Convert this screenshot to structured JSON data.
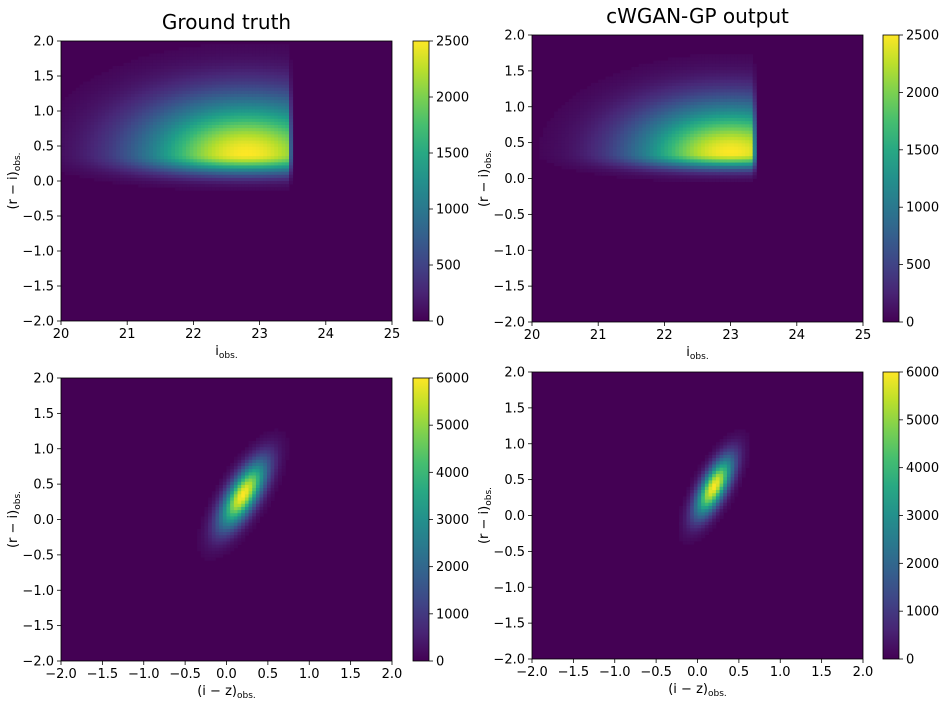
{
  "chart_data": [
    {
      "type": "heatmap",
      "title": "Ground truth",
      "xlabel": "i",
      "xlabel_sub": "obs.",
      "ylabel": "(r − i)",
      "ylabel_sub": "obs.",
      "xlim": [
        20,
        25
      ],
      "ylim": [
        -2.0,
        2.0
      ],
      "x_ticks": [
        "20",
        "21",
        "22",
        "23",
        "24",
        "25"
      ],
      "y_ticks": [
        "−2.0",
        "−1.5",
        "−1.0",
        "−0.5",
        "0.0",
        "0.5",
        "1.0",
        "1.5",
        "2.0"
      ],
      "colormap": "viridis",
      "colorbar_range": [
        0,
        2500
      ],
      "colorbar_ticks": [
        "0",
        "500",
        "1000",
        "1500",
        "2000",
        "2500"
      ],
      "grid": false,
      "density": {
        "kind": "imag",
        "x_cut": 23.5,
        "peak_x": 22.8,
        "peak_y": 0.38,
        "peak_value": 2500,
        "upper_spread": 0.55,
        "lower_spread": 0.18,
        "x_spread": 1.1
      }
    },
    {
      "type": "heatmap",
      "title": "cWGAN-GP output",
      "xlabel": "i",
      "xlabel_sub": "obs.",
      "ylabel": "(r − i)",
      "ylabel_sub": "obs.",
      "xlim": [
        20,
        25
      ],
      "ylim": [
        -2.0,
        2.0
      ],
      "x_ticks": [
        "20",
        "21",
        "22",
        "23",
        "24",
        "25"
      ],
      "y_ticks": [
        "−2.0",
        "−1.5",
        "−1.0",
        "−0.5",
        "0.0",
        "0.5",
        "1.0",
        "1.5",
        "2.0"
      ],
      "colormap": "viridis",
      "colorbar_range": [
        0,
        2500
      ],
      "colorbar_ticks": [
        "0",
        "500",
        "1000",
        "1500",
        "2000",
        "2500"
      ],
      "grid": false,
      "density": {
        "kind": "imag",
        "x_cut": 23.4,
        "peak_x": 23.0,
        "peak_y": 0.35,
        "peak_value": 2500,
        "upper_spread": 0.48,
        "lower_spread": 0.14,
        "x_spread": 1.0
      }
    },
    {
      "type": "heatmap",
      "title": "",
      "xlabel": "(i − z)",
      "xlabel_sub": "obs.",
      "ylabel": "(r − i)",
      "ylabel_sub": "obs.",
      "xlim": [
        -2.0,
        2.0
      ],
      "ylim": [
        -2.0,
        2.0
      ],
      "x_ticks": [
        "−2.0",
        "−1.5",
        "−1.0",
        "−0.5",
        "0.0",
        "0.5",
        "1.0",
        "1.5",
        "2.0"
      ],
      "y_ticks": [
        "−2.0",
        "−1.5",
        "−1.0",
        "−0.5",
        "0.0",
        "0.5",
        "1.0",
        "1.5",
        "2.0"
      ],
      "colormap": "viridis",
      "colorbar_range": [
        0,
        6000
      ],
      "colorbar_ticks": [
        "0",
        "1000",
        "2000",
        "3000",
        "4000",
        "5000",
        "6000"
      ],
      "grid": false,
      "density": {
        "kind": "color",
        "peak_x": 0.2,
        "peak_y": 0.35,
        "peak_value": 6000,
        "slope": 0.5,
        "along_spread": 0.35,
        "across_spread": 0.12
      }
    },
    {
      "type": "heatmap",
      "title": "",
      "xlabel": "(i − z)",
      "xlabel_sub": "obs.",
      "ylabel": "(r − i)",
      "ylabel_sub": "obs.",
      "xlim": [
        -2.0,
        2.0
      ],
      "ylim": [
        -2.0,
        2.0
      ],
      "x_ticks": [
        "−2.0",
        "−1.5",
        "−1.0",
        "−0.5",
        "0.0",
        "0.5",
        "1.0",
        "1.5",
        "2.0"
      ],
      "y_ticks": [
        "−2.0",
        "−1.5",
        "−1.0",
        "−0.5",
        "0.0",
        "0.5",
        "1.0",
        "1.5",
        "2.0"
      ],
      "colormap": "viridis",
      "colorbar_range": [
        0,
        6000
      ],
      "colorbar_ticks": [
        "0",
        "1000",
        "2000",
        "3000",
        "4000",
        "5000",
        "6000"
      ],
      "grid": false,
      "density": {
        "kind": "color",
        "peak_x": 0.2,
        "peak_y": 0.4,
        "peak_value": 6000,
        "slope": 0.45,
        "along_spread": 0.3,
        "across_spread": 0.1
      }
    }
  ]
}
